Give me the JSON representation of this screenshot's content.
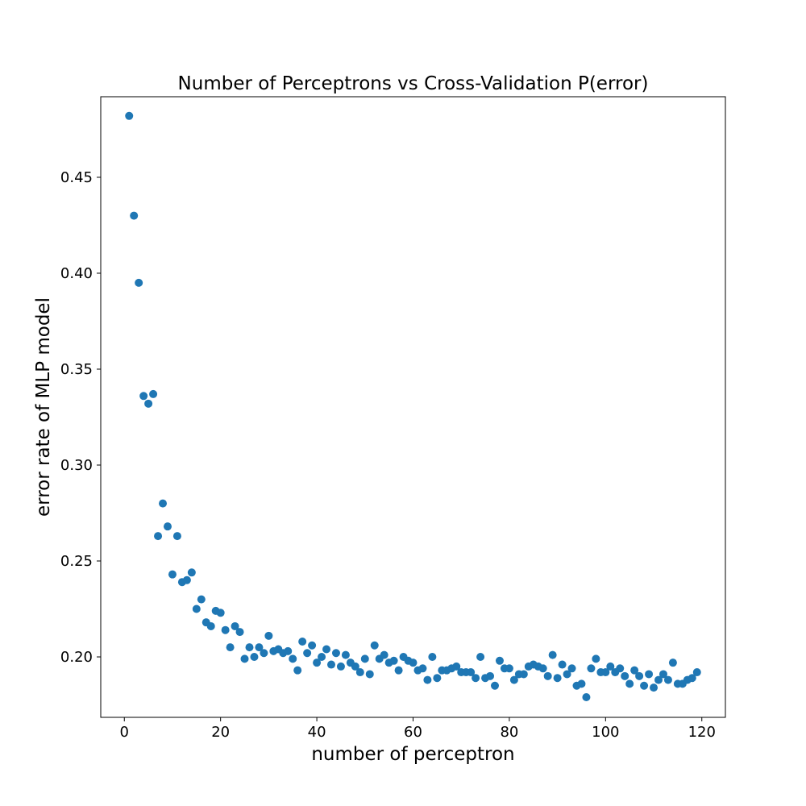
{
  "chart_data": {
    "type": "scatter",
    "title": "Number of Perceptrons vs Cross-Validation P(error)",
    "xlabel": "number of perceptron",
    "ylabel": "error rate of MLP model",
    "xlim": [
      -4.9,
      124.9
    ],
    "ylim": [
      0.1685,
      0.492
    ],
    "xticks": [
      0,
      20,
      40,
      60,
      80,
      100,
      120
    ],
    "yticks": [
      0.2,
      0.25,
      0.3,
      0.35,
      0.4,
      0.45
    ],
    "xtick_labels": [
      "0",
      "20",
      "40",
      "60",
      "80",
      "100",
      "120"
    ],
    "ytick_labels": [
      "0.20",
      "0.25",
      "0.30",
      "0.35",
      "0.40",
      "0.45"
    ],
    "marker_color": "#1f77b4",
    "grid": false,
    "series": [
      {
        "name": "P(error)",
        "x": [
          1,
          2,
          3,
          4,
          5,
          6,
          7,
          8,
          9,
          10,
          11,
          12,
          13,
          14,
          15,
          16,
          17,
          18,
          19,
          20,
          21,
          22,
          23,
          24,
          25,
          26,
          27,
          28,
          29,
          30,
          31,
          32,
          33,
          34,
          35,
          36,
          37,
          38,
          39,
          40,
          41,
          42,
          43,
          44,
          45,
          46,
          47,
          48,
          49,
          50,
          51,
          52,
          53,
          54,
          55,
          56,
          57,
          58,
          59,
          60,
          61,
          62,
          63,
          64,
          65,
          66,
          67,
          68,
          69,
          70,
          71,
          72,
          73,
          74,
          75,
          76,
          77,
          78,
          79,
          80,
          81,
          82,
          83,
          84,
          85,
          86,
          87,
          88,
          89,
          90,
          91,
          92,
          93,
          94,
          95,
          96,
          97,
          98,
          99,
          100,
          101,
          102,
          103,
          104,
          105,
          106,
          107,
          108,
          109,
          110,
          111,
          112,
          113,
          114,
          115,
          116,
          117,
          118,
          119
        ],
        "y": [
          0.482,
          0.43,
          0.395,
          0.336,
          0.332,
          0.337,
          0.263,
          0.28,
          0.268,
          0.243,
          0.263,
          0.239,
          0.24,
          0.244,
          0.225,
          0.23,
          0.218,
          0.216,
          0.224,
          0.223,
          0.214,
          0.205,
          0.216,
          0.213,
          0.199,
          0.205,
          0.2,
          0.205,
          0.202,
          0.211,
          0.203,
          0.204,
          0.202,
          0.203,
          0.199,
          0.193,
          0.208,
          0.202,
          0.206,
          0.197,
          0.2,
          0.204,
          0.196,
          0.202,
          0.195,
          0.201,
          0.197,
          0.195,
          0.192,
          0.199,
          0.191,
          0.206,
          0.199,
          0.201,
          0.197,
          0.198,
          0.193,
          0.2,
          0.198,
          0.197,
          0.193,
          0.194,
          0.188,
          0.2,
          0.189,
          0.193,
          0.193,
          0.194,
          0.195,
          0.192,
          0.192,
          0.192,
          0.189,
          0.2,
          0.189,
          0.19,
          0.185,
          0.198,
          0.194,
          0.194,
          0.188,
          0.191,
          0.191,
          0.195,
          0.196,
          0.195,
          0.194,
          0.19,
          0.201,
          0.189,
          0.196,
          0.191,
          0.194,
          0.185,
          0.186,
          0.179,
          0.194,
          0.199,
          0.192,
          0.192,
          0.195,
          0.192,
          0.194,
          0.19,
          0.186,
          0.193,
          0.19,
          0.185,
          0.191,
          0.184,
          0.188,
          0.191,
          0.188,
          0.197,
          0.186,
          0.186,
          0.188,
          0.189,
          0.192
        ]
      }
    ]
  }
}
